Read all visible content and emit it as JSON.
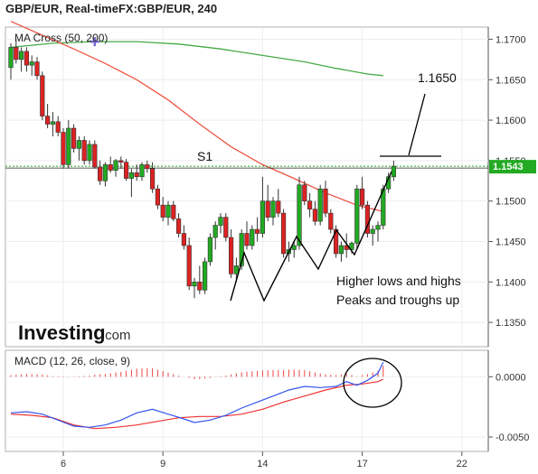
{
  "title": "GBP/EUR, Real-timeFX:GBP/EUR, 240",
  "price_indicator_label": "MA Cross (50, 200)",
  "macd_label": "MACD (12, 26, close, 9)",
  "brand": {
    "name": "Investing",
    "suffix": ".com"
  },
  "annotations": {
    "target": "1.1650",
    "support": "S1",
    "line1": "Higher lows and highs",
    "line2": "Peaks and troughs up"
  },
  "colors": {
    "up": "#22aa22",
    "down": "#dd2222",
    "ma_fast": "#ee5544",
    "ma_slow": "#44aa44",
    "macd": "#3355ee",
    "signal": "#ee3333",
    "hist": "#ee4444",
    "support_line": "#22aa22",
    "price_badge": "#22aa22"
  },
  "chart_data": [
    {
      "type": "candlestick",
      "ylim": [
        1.132,
        1.1715
      ],
      "ytick_labels": [
        "1.1700",
        "1.1650",
        "1.1600",
        "1.1550",
        "1.1500",
        "1.1450",
        "1.1400",
        "1.1350"
      ],
      "yticks": [
        1.17,
        1.165,
        1.16,
        1.155,
        1.15,
        1.145,
        1.14,
        1.135
      ],
      "xtick_labels": [
        "6",
        "9",
        "14",
        "17",
        "22"
      ],
      "xticks_index": [
        10,
        29,
        48,
        67,
        86
      ],
      "n_bars": 92,
      "current_price": "1.1543",
      "support_level": 1.1543,
      "ohlc": [
        [
          1.1665,
          1.1695,
          1.165,
          1.169
        ],
        [
          1.169,
          1.17,
          1.167,
          1.1675
        ],
        [
          1.1675,
          1.169,
          1.166,
          1.1685
        ],
        [
          1.1685,
          1.169,
          1.166,
          1.1668
        ],
        [
          1.1668,
          1.168,
          1.1655,
          1.1672
        ],
        [
          1.1672,
          1.1678,
          1.165,
          1.1655
        ],
        [
          1.1655,
          1.166,
          1.16,
          1.1605
        ],
        [
          1.1605,
          1.162,
          1.159,
          1.1595
        ],
        [
          1.1595,
          1.161,
          1.158,
          1.1598
        ],
        [
          1.1598,
          1.1605,
          1.158,
          1.1585
        ],
        [
          1.1585,
          1.159,
          1.154,
          1.1545
        ],
        [
          1.1545,
          1.16,
          1.154,
          1.159
        ],
        [
          1.159,
          1.1595,
          1.156,
          1.1565
        ],
        [
          1.1565,
          1.158,
          1.155,
          1.1575
        ],
        [
          1.1575,
          1.158,
          1.1545,
          1.155
        ],
        [
          1.155,
          1.1575,
          1.1545,
          1.157
        ],
        [
          1.157,
          1.1575,
          1.154,
          1.1542
        ],
        [
          1.1542,
          1.155,
          1.152,
          1.1525
        ],
        [
          1.1525,
          1.1548,
          1.1518,
          1.1545
        ],
        [
          1.1545,
          1.1555,
          1.1535,
          1.1538
        ],
        [
          1.1538,
          1.1552,
          1.153,
          1.155
        ],
        [
          1.155,
          1.1555,
          1.154,
          1.1548
        ],
        [
          1.1548,
          1.1552,
          1.1525,
          1.1528
        ],
        [
          1.1528,
          1.154,
          1.1505,
          1.1535
        ],
        [
          1.1535,
          1.1545,
          1.1525,
          1.153
        ],
        [
          1.153,
          1.1548,
          1.1525,
          1.1545
        ],
        [
          1.1545,
          1.155,
          1.1535,
          1.154
        ],
        [
          1.154,
          1.1548,
          1.151,
          1.1515
        ],
        [
          1.1515,
          1.152,
          1.149,
          1.1495
        ],
        [
          1.1495,
          1.1505,
          1.1475,
          1.148
        ],
        [
          1.148,
          1.15,
          1.147,
          1.1495
        ],
        [
          1.1495,
          1.15,
          1.1475,
          1.1478
        ],
        [
          1.1478,
          1.1485,
          1.1455,
          1.146
        ],
        [
          1.146,
          1.147,
          1.144,
          1.1445
        ],
        [
          1.1445,
          1.1455,
          1.139,
          1.1395
        ],
        [
          1.1395,
          1.1405,
          1.138,
          1.14
        ],
        [
          1.14,
          1.142,
          1.1385,
          1.139
        ],
        [
          1.139,
          1.143,
          1.1385,
          1.1425
        ],
        [
          1.1425,
          1.146,
          1.142,
          1.1455
        ],
        [
          1.1455,
          1.1475,
          1.144,
          1.147
        ],
        [
          1.147,
          1.1485,
          1.146,
          1.148
        ],
        [
          1.148,
          1.1485,
          1.145,
          1.1455
        ],
        [
          1.1455,
          1.1465,
          1.1405,
          1.141
        ],
        [
          1.141,
          1.143,
          1.14,
          1.142
        ],
        [
          1.142,
          1.1465,
          1.1415,
          1.146
        ],
        [
          1.146,
          1.1475,
          1.144,
          1.1445
        ],
        [
          1.1445,
          1.147,
          1.144,
          1.1465
        ],
        [
          1.1465,
          1.148,
          1.145,
          1.146
        ],
        [
          1.146,
          1.153,
          1.1455,
          1.15
        ],
        [
          1.15,
          1.152,
          1.1475,
          1.148
        ],
        [
          1.148,
          1.1505,
          1.147,
          1.15
        ],
        [
          1.15,
          1.1515,
          1.148,
          1.1485
        ],
        [
          1.1485,
          1.149,
          1.143,
          1.1435
        ],
        [
          1.1435,
          1.145,
          1.1425,
          1.144
        ],
        [
          1.144,
          1.145,
          1.143,
          1.1445
        ],
        [
          1.1445,
          1.153,
          1.144,
          1.152
        ],
        [
          1.152,
          1.1525,
          1.1495,
          1.15
        ],
        [
          1.15,
          1.151,
          1.148,
          1.149
        ],
        [
          1.149,
          1.15,
          1.147,
          1.1475
        ],
        [
          1.1475,
          1.152,
          1.147,
          1.1515
        ],
        [
          1.1515,
          1.1525,
          1.148,
          1.1485
        ],
        [
          1.1485,
          1.149,
          1.146,
          1.1465
        ],
        [
          1.1465,
          1.147,
          1.143,
          1.1435
        ],
        [
          1.1435,
          1.145,
          1.1425,
          1.1445
        ],
        [
          1.1445,
          1.146,
          1.143,
          1.144
        ],
        [
          1.144,
          1.145,
          1.1435,
          1.1448
        ],
        [
          1.1448,
          1.152,
          1.144,
          1.1515
        ],
        [
          1.1515,
          1.153,
          1.149,
          1.1495
        ],
        [
          1.1495,
          1.15,
          1.1455,
          1.146
        ],
        [
          1.146,
          1.147,
          1.1445,
          1.1465
        ],
        [
          1.1465,
          1.1475,
          1.145,
          1.147
        ],
        [
          1.147,
          1.152,
          1.1465,
          1.1515
        ],
        [
          1.1515,
          1.1535,
          1.151,
          1.153
        ],
        [
          1.153,
          1.155,
          1.1525,
          1.1543
        ]
      ],
      "ma_fast": [
        [
          0,
          1.1722
        ],
        [
          6,
          1.1705
        ],
        [
          12,
          1.1688
        ],
        [
          18,
          1.167
        ],
        [
          24,
          1.165
        ],
        [
          30,
          1.1625
        ],
        [
          36,
          1.1595
        ],
        [
          42,
          1.1567
        ],
        [
          48,
          1.1545
        ],
        [
          54,
          1.1528
        ],
        [
          60,
          1.151
        ],
        [
          66,
          1.1495
        ],
        [
          71,
          1.1487
        ]
      ],
      "ma_slow": [
        [
          0,
          1.169
        ],
        [
          8,
          1.1695
        ],
        [
          16,
          1.1697
        ],
        [
          24,
          1.1697
        ],
        [
          32,
          1.1694
        ],
        [
          40,
          1.1688
        ],
        [
          48,
          1.168
        ],
        [
          56,
          1.1672
        ],
        [
          62,
          1.1664
        ],
        [
          68,
          1.1657
        ],
        [
          71,
          1.1655
        ]
      ],
      "ma_cross_index": 16
    },
    {
      "type": "macd",
      "ylim": [
        -0.0062,
        0.0022
      ],
      "yticks": [
        0.0,
        -0.005
      ],
      "ytick_labels": [
        "0.0000",
        "-0.0050"
      ],
      "macd": [
        [
          0,
          -0.003
        ],
        [
          3,
          -0.0029
        ],
        [
          6,
          -0.0031
        ],
        [
          9,
          -0.0036
        ],
        [
          12,
          -0.0041
        ],
        [
          15,
          -0.0042
        ],
        [
          18,
          -0.004
        ],
        [
          21,
          -0.0036
        ],
        [
          24,
          -0.003
        ],
        [
          27,
          -0.0027
        ],
        [
          30,
          -0.0031
        ],
        [
          33,
          -0.0035
        ],
        [
          35,
          -0.0038
        ],
        [
          38,
          -0.0036
        ],
        [
          41,
          -0.0032
        ],
        [
          44,
          -0.0026
        ],
        [
          47,
          -0.0021
        ],
        [
          50,
          -0.0016
        ],
        [
          53,
          -0.0011
        ],
        [
          56,
          -0.0008
        ],
        [
          59,
          -0.0009
        ],
        [
          62,
          -0.0008
        ],
        [
          64,
          -0.0004
        ],
        [
          66,
          -0.0007
        ],
        [
          68,
          -0.0003
        ],
        [
          70,
          0.0003
        ],
        [
          71,
          0.0012
        ]
      ],
      "signal": [
        [
          0,
          -0.0031
        ],
        [
          4,
          -0.0032
        ],
        [
          8,
          -0.0034
        ],
        [
          12,
          -0.004
        ],
        [
          16,
          -0.0043
        ],
        [
          20,
          -0.0042
        ],
        [
          24,
          -0.004
        ],
        [
          28,
          -0.0037
        ],
        [
          32,
          -0.0034
        ],
        [
          36,
          -0.0033
        ],
        [
          40,
          -0.0033
        ],
        [
          44,
          -0.0031
        ],
        [
          48,
          -0.0027
        ],
        [
          52,
          -0.0021
        ],
        [
          56,
          -0.0016
        ],
        [
          60,
          -0.0011
        ],
        [
          64,
          -0.0007
        ],
        [
          67,
          -0.0006
        ],
        [
          70,
          -0.0004
        ],
        [
          71,
          -0.0002
        ]
      ],
      "hist_range": [
        0,
        71
      ]
    }
  ]
}
